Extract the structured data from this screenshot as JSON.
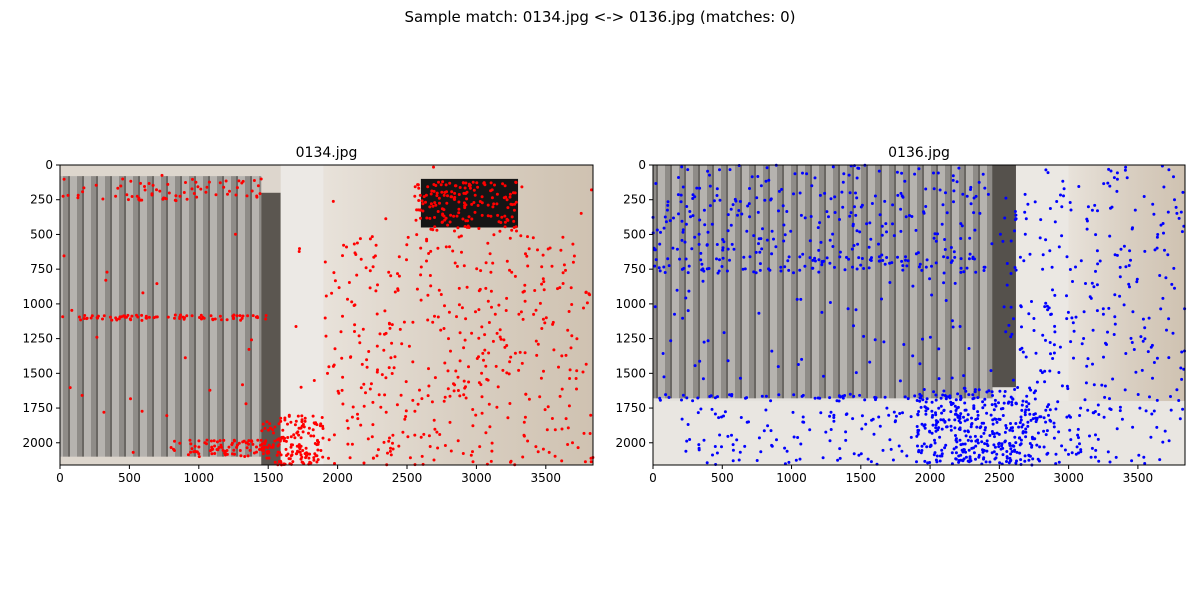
{
  "figure": {
    "title": "Sample match: 0134.jpg <-> 0136.jpg (matches: 0)"
  },
  "chart_data": [
    {
      "type": "scatter",
      "title": "0134.jpg",
      "xlim": [
        0,
        3840
      ],
      "ylim": [
        2160,
        0
      ],
      "xticks": [
        0,
        500,
        1000,
        1500,
        2000,
        2500,
        3000,
        3500
      ],
      "yticks": [
        0,
        250,
        500,
        750,
        1000,
        1250,
        1500,
        1750,
        2000
      ],
      "grid": false,
      "point_color": "#ff0000",
      "background": "photo of room corner with grey vertical blinds and light wood-grain wall",
      "keypoint_clusters": [
        {
          "region": "blinds top edge",
          "x": [
            0,
            1450
          ],
          "y": [
            100,
            260
          ],
          "count": 70
        },
        {
          "region": "blinds horizontal rail",
          "x": [
            0,
            1500
          ],
          "y": [
            1080,
            1120
          ],
          "count": 80
        },
        {
          "region": "blinds bottom edge",
          "x": [
            800,
            1500
          ],
          "y": [
            1980,
            2100
          ],
          "count": 90
        },
        {
          "region": "floor corner",
          "x": [
            1450,
            1900
          ],
          "y": [
            1800,
            2160
          ],
          "count": 160
        },
        {
          "region": "ceiling lamp",
          "x": [
            2550,
            3300
          ],
          "y": [
            120,
            480
          ],
          "count": 170
        },
        {
          "region": "wood wall",
          "x": [
            1900,
            3840
          ],
          "y": [
            500,
            2160
          ],
          "count": 420
        },
        {
          "region": "scattered",
          "x": [
            0,
            3840
          ],
          "y": [
            0,
            2160
          ],
          "count": 60
        }
      ]
    },
    {
      "type": "scatter",
      "title": "0136.jpg",
      "xlim": [
        0,
        3840
      ],
      "ylim": [
        2160,
        0
      ],
      "xticks": [
        0,
        500,
        1000,
        1500,
        2000,
        2500,
        3000,
        3500
      ],
      "yticks": [
        0,
        250,
        500,
        750,
        1000,
        1250,
        1500,
        1750,
        2000
      ],
      "grid": false,
      "point_color": "#0000ff",
      "background": "photo of room corner with grey vertical blinds, window frame and light wood-grain wall",
      "keypoint_clusters": [
        {
          "region": "blinds upper area",
          "x": [
            0,
            2450
          ],
          "y": [
            0,
            650
          ],
          "count": 260
        },
        {
          "region": "blinds horizontal rail",
          "x": [
            0,
            2450
          ],
          "y": [
            660,
            780
          ],
          "count": 120
        },
        {
          "region": "blinds lower area",
          "x": [
            0,
            2450
          ],
          "y": [
            800,
            1600
          ],
          "count": 60
        },
        {
          "region": "blinds bottom edge",
          "x": [
            0,
            2450
          ],
          "y": [
            1650,
            1700
          ],
          "count": 60
        },
        {
          "region": "floor",
          "x": [
            200,
            3200
          ],
          "y": [
            1750,
            2160
          ],
          "count": 200
        },
        {
          "region": "floor corner",
          "x": [
            1900,
            2800
          ],
          "y": [
            1600,
            2160
          ],
          "count": 320
        },
        {
          "region": "wood wall",
          "x": [
            2500,
            3840
          ],
          "y": [
            0,
            2160
          ],
          "count": 330
        }
      ]
    }
  ]
}
